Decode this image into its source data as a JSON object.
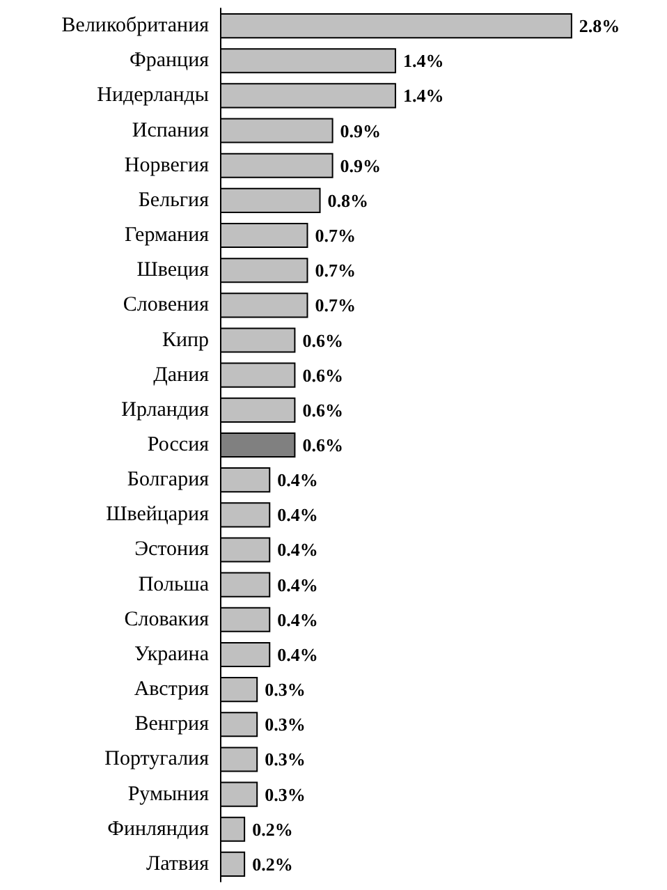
{
  "chart_data": {
    "type": "bar",
    "orientation": "horizontal",
    "categories": [
      "Великобритания",
      "Франция",
      "Нидерланды",
      "Испания",
      "Норвегия",
      "Бельгия",
      "Германия",
      "Швеция",
      "Словения",
      "Кипр",
      "Дания",
      "Ирландия",
      "Россия",
      "Болгария",
      "Швейцария",
      "Эстония",
      "Польша",
      "Словакия",
      "Украина",
      "Австрия",
      "Венгрия",
      "Португалия",
      "Румыния",
      "Финляндия",
      "Латвия"
    ],
    "values": [
      2.8,
      1.4,
      1.4,
      0.9,
      0.9,
      0.8,
      0.7,
      0.7,
      0.7,
      0.6,
      0.6,
      0.6,
      0.6,
      0.4,
      0.4,
      0.4,
      0.4,
      0.4,
      0.4,
      0.3,
      0.3,
      0.3,
      0.3,
      0.2,
      0.2
    ],
    "value_labels": [
      "2.8%",
      "1.4%",
      "1.4%",
      "0.9%",
      "0.9%",
      "0.8%",
      "0.7%",
      "0.7%",
      "0.7%",
      "0.6%",
      "0.6%",
      "0.6%",
      "0.6%",
      "0.4%",
      "0.4%",
      "0.4%",
      "0.4%",
      "0.4%",
      "0.4%",
      "0.3%",
      "0.3%",
      "0.3%",
      "0.3%",
      "0.2%",
      "0.2%"
    ],
    "colors": [
      "#c0c0c0",
      "#c0c0c0",
      "#c0c0c0",
      "#c0c0c0",
      "#c0c0c0",
      "#c0c0c0",
      "#c0c0c0",
      "#c0c0c0",
      "#c0c0c0",
      "#c0c0c0",
      "#c0c0c0",
      "#c0c0c0",
      "#808080",
      "#c0c0c0",
      "#c0c0c0",
      "#c0c0c0",
      "#c0c0c0",
      "#c0c0c0",
      "#c0c0c0",
      "#c0c0c0",
      "#c0c0c0",
      "#c0c0c0",
      "#c0c0c0",
      "#c0c0c0",
      "#c0c0c0"
    ]
  }
}
